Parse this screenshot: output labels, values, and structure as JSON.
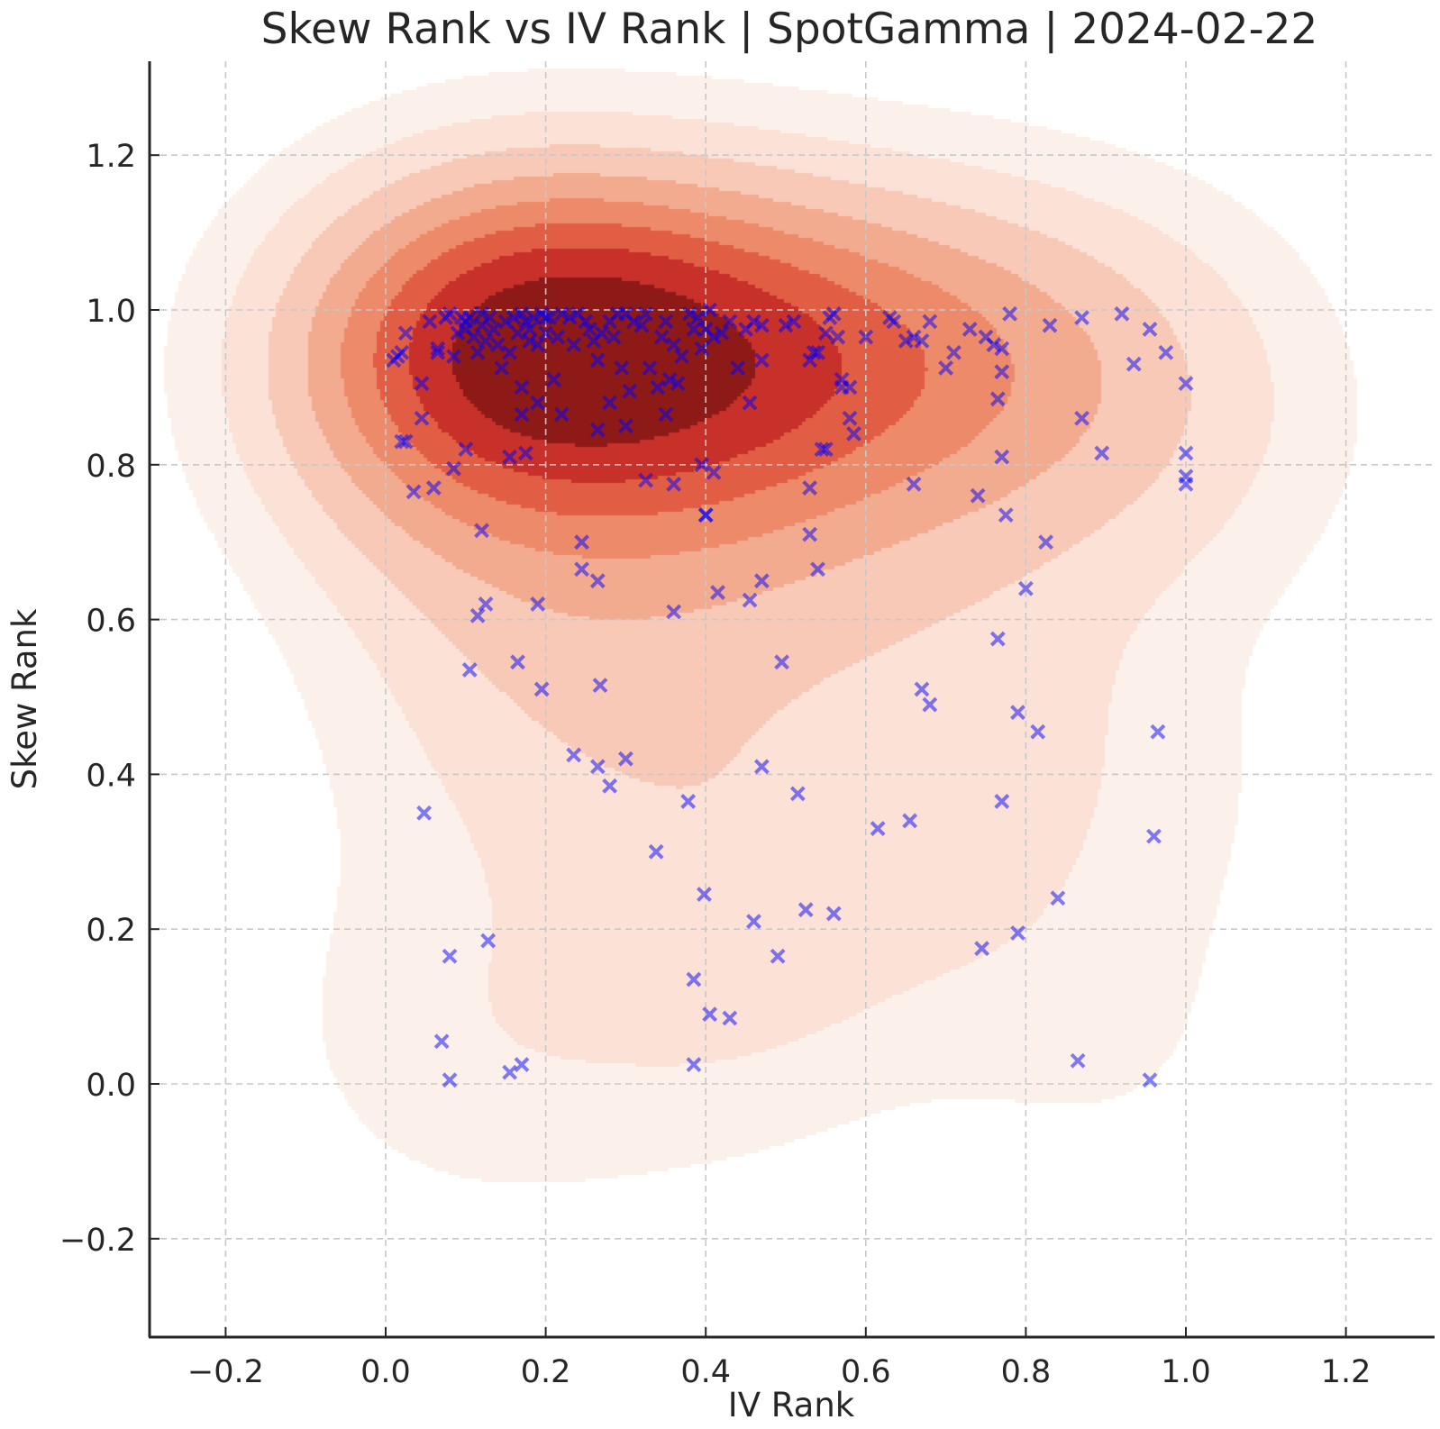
{
  "chart_data": {
    "type": "scatter",
    "title": "Skew Rank vs IV Rank | SpotGamma | 2024-02-22",
    "xlabel": "IV Rank",
    "ylabel": "Skew Rank",
    "xlim": [
      -0.3,
      1.3
    ],
    "ylim": [
      -0.32,
      1.32
    ],
    "grid": true,
    "x_ticks": [
      -0.2,
      0.0,
      0.2,
      0.4,
      0.6,
      0.8,
      1.0,
      1.2
    ],
    "x_tick_labels": [
      "−0.2",
      "0.0",
      "0.2",
      "0.4",
      "0.6",
      "0.8",
      "1.0",
      "1.2"
    ],
    "y_ticks": [
      -0.2,
      0.0,
      0.2,
      0.4,
      0.6,
      0.8,
      1.0,
      1.2
    ],
    "y_tick_labels": [
      "−0.2",
      "0.0",
      "0.2",
      "0.4",
      "0.6",
      "0.8",
      "1.0",
      "1.2"
    ],
    "marker": "x",
    "marker_color": "#0000ff",
    "density_overlay": {
      "type": "kde",
      "colormap": "Reds",
      "levels": 9
    },
    "series": [
      {
        "name": "tickers",
        "x": [
          0.01,
          0.015,
          0.02,
          0.025,
          0.045,
          0.055,
          0.065,
          0.075,
          0.08,
          0.085,
          0.09,
          0.095,
          0.1,
          0.1,
          0.105,
          0.11,
          0.115,
          0.12,
          0.12,
          0.125,
          0.13,
          0.135,
          0.14,
          0.145,
          0.15,
          0.155,
          0.16,
          0.165,
          0.17,
          0.17,
          0.175,
          0.18,
          0.18,
          0.185,
          0.19,
          0.19,
          0.195,
          0.2,
          0.2,
          0.205,
          0.21,
          0.215,
          0.22,
          0.23,
          0.235,
          0.24,
          0.25,
          0.255,
          0.26,
          0.265,
          0.27,
          0.28,
          0.285,
          0.29,
          0.295,
          0.3,
          0.305,
          0.31,
          0.32,
          0.325,
          0.33,
          0.34,
          0.345,
          0.35,
          0.355,
          0.36,
          0.365,
          0.37,
          0.38,
          0.385,
          0.39,
          0.395,
          0.4,
          0.405,
          0.41,
          0.42,
          0.43,
          0.44,
          0.45,
          0.46,
          0.47,
          0.5,
          0.51,
          0.53,
          0.54,
          0.55,
          0.555,
          0.56,
          0.565,
          0.57,
          0.58,
          0.6,
          0.63,
          0.635,
          0.65,
          0.66,
          0.67,
          0.68,
          0.7,
          0.71,
          0.73,
          0.75,
          0.76,
          0.77,
          0.78,
          0.83,
          0.87,
          0.92,
          0.935,
          0.955,
          0.975,
          1.0,
          0.02,
          0.025,
          0.035,
          0.045,
          0.06,
          0.065,
          0.085,
          0.1,
          0.12,
          0.155,
          0.17,
          0.175,
          0.22,
          0.265,
          0.28,
          0.3,
          0.325,
          0.35,
          0.36,
          0.395,
          0.4,
          0.41,
          0.455,
          0.47,
          0.53,
          0.535,
          0.545,
          0.55,
          0.57,
          0.58,
          0.585,
          0.66,
          0.74,
          0.765,
          0.77,
          0.775,
          0.87,
          0.895,
          1.0,
          1.0,
          1.0,
          0.105,
          0.115,
          0.125,
          0.165,
          0.19,
          0.195,
          0.245,
          0.245,
          0.265,
          0.268,
          0.36,
          0.4,
          0.415,
          0.455,
          0.47,
          0.495,
          0.53,
          0.54,
          0.67,
          0.68,
          0.765,
          0.77,
          0.79,
          0.8,
          0.815,
          0.825,
          0.965,
          0.048,
          0.08,
          0.128,
          0.07,
          0.08,
          0.155,
          0.17,
          0.235,
          0.265,
          0.28,
          0.3,
          0.338,
          0.378,
          0.385,
          0.385,
          0.398,
          0.405,
          0.43,
          0.46,
          0.47,
          0.49,
          0.515,
          0.525,
          0.56,
          0.615,
          0.655,
          0.745,
          0.77,
          0.79,
          0.84,
          0.865,
          0.955,
          0.96
        ],
        "y": [
          0.935,
          0.94,
          0.945,
          0.97,
          0.905,
          0.985,
          0.945,
          0.99,
          0.995,
          0.94,
          0.97,
          0.99,
          0.985,
          0.975,
          0.99,
          0.965,
          0.945,
          0.98,
          0.995,
          0.96,
          0.99,
          0.975,
          0.955,
          0.925,
          0.985,
          0.945,
          0.99,
          0.97,
          0.995,
          0.9,
          0.985,
          0.975,
          0.96,
          0.99,
          0.88,
          0.955,
          0.995,
          0.99,
          0.97,
          0.99,
          0.91,
          0.965,
          0.995,
          0.99,
          0.955,
          0.995,
          0.985,
          0.975,
          0.96,
          0.935,
          0.97,
          0.985,
          0.965,
          0.995,
          0.925,
          0.995,
          0.895,
          0.985,
          0.98,
          0.995,
          0.925,
          0.9,
          0.965,
          0.985,
          0.91,
          0.955,
          0.905,
          0.94,
          0.995,
          0.975,
          0.99,
          0.95,
          0.975,
          1.0,
          0.965,
          0.97,
          0.985,
          0.925,
          0.975,
          0.985,
          0.98,
          0.98,
          0.985,
          0.935,
          0.945,
          0.97,
          0.99,
          0.995,
          0.965,
          0.91,
          0.9,
          0.965,
          0.99,
          0.985,
          0.96,
          0.965,
          0.96,
          0.985,
          0.925,
          0.945,
          0.975,
          0.965,
          0.955,
          0.95,
          0.995,
          0.98,
          0.99,
          0.995,
          0.93,
          0.975,
          0.945,
          0.905,
          0.83,
          0.83,
          0.765,
          0.86,
          0.77,
          0.95,
          0.795,
          0.82,
          0.715,
          0.81,
          0.865,
          0.815,
          0.865,
          0.845,
          0.88,
          0.85,
          0.78,
          0.865,
          0.775,
          0.8,
          0.735,
          0.79,
          0.88,
          0.935,
          0.77,
          0.945,
          0.82,
          0.82,
          0.9,
          0.86,
          0.84,
          0.775,
          0.76,
          0.885,
          0.81,
          0.735,
          0.86,
          0.815,
          0.815,
          0.785,
          0.775,
          0.535,
          0.605,
          0.62,
          0.545,
          0.62,
          0.51,
          0.665,
          0.7,
          0.65,
          0.515,
          0.61,
          0.735,
          0.635,
          0.625,
          0.65,
          0.545,
          0.71,
          0.665,
          0.51,
          0.49,
          0.575,
          0.365,
          0.48,
          0.64,
          0.455,
          0.7,
          0.455,
          0.35,
          0.165,
          0.185,
          0.055,
          0.005,
          0.015,
          0.025,
          0.425,
          0.41,
          0.385,
          0.42,
          0.3,
          0.365,
          0.135,
          0.025,
          0.245,
          0.09,
          0.085,
          0.21,
          0.41,
          0.165,
          0.375,
          0.225,
          0.22,
          0.33,
          0.34,
          0.175,
          0.92,
          0.195,
          0.24,
          0.03,
          0.005,
          0.32
        ]
      }
    ]
  }
}
